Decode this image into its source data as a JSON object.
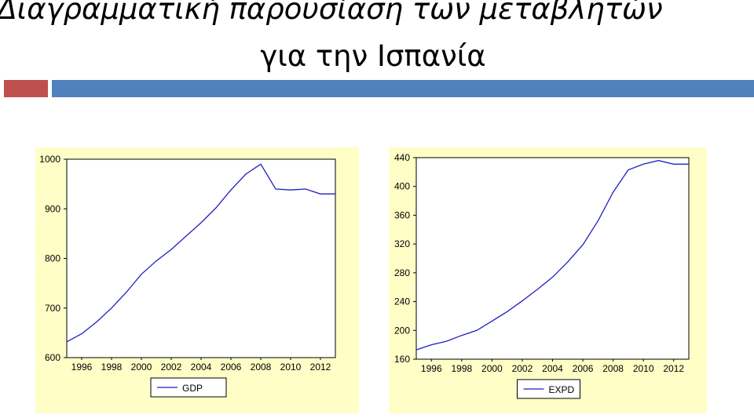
{
  "slide": {
    "title_line1": "Διαγραμματική παρουσίαση των μεταβλητών",
    "title_line2": "για την Ισπανία"
  },
  "colors": {
    "accent_red": "#c0504d",
    "accent_blue": "#4f81bd",
    "line": "#1f1fbf",
    "panel_bg": "#fefec6"
  },
  "chart_data": [
    {
      "type": "line",
      "legend": "bottom-center",
      "grid": false,
      "xlim": [
        1995,
        2013
      ],
      "ylim": [
        600,
        1000
      ],
      "x_ticks": [
        "1996",
        "1998",
        "2000",
        "2002",
        "2004",
        "2006",
        "2008",
        "2010",
        "2012"
      ],
      "y_ticks": [
        "600",
        "700",
        "800",
        "900",
        "1000"
      ],
      "series": [
        {
          "name": "GDP",
          "x": [
            1995,
            1996,
            1997,
            1998,
            1999,
            2000,
            2001,
            2002,
            2003,
            2004,
            2005,
            2006,
            2007,
            2008,
            2009,
            2010,
            2011,
            2012,
            2013
          ],
          "values": [
            632,
            648,
            672,
            700,
            732,
            768,
            795,
            818,
            845,
            872,
            902,
            938,
            970,
            990,
            940,
            938,
            940,
            930,
            930
          ]
        }
      ]
    },
    {
      "type": "line",
      "legend": "bottom-center",
      "grid": false,
      "xlim": [
        1995,
        2013
      ],
      "ylim": [
        160,
        440
      ],
      "x_ticks": [
        "1996",
        "1998",
        "2000",
        "2002",
        "2004",
        "2006",
        "2008",
        "2010",
        "2012"
      ],
      "y_ticks": [
        "160",
        "200",
        "240",
        "280",
        "320",
        "360",
        "400",
        "440"
      ],
      "series": [
        {
          "name": "EXPD",
          "x": [
            1995,
            1996,
            1997,
            1998,
            1999,
            2000,
            2001,
            2002,
            2003,
            2004,
            2005,
            2006,
            2007,
            2008,
            2009,
            2010,
            2011,
            2012,
            2013
          ],
          "values": [
            173,
            180,
            185,
            193,
            200,
            213,
            226,
            241,
            257,
            274,
            295,
            319,
            352,
            392,
            423,
            431,
            436,
            431,
            431
          ]
        }
      ]
    }
  ]
}
